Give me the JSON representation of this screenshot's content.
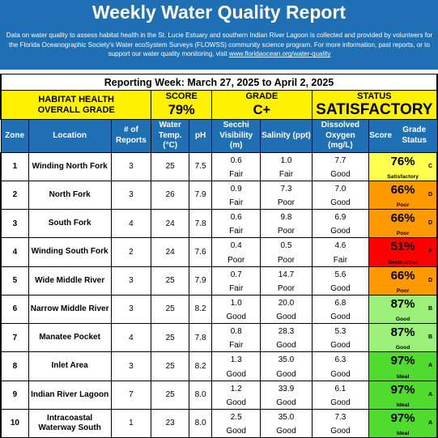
{
  "header": {
    "title": "Weekly Water Quality Report",
    "description": "Data on water quality to assess habitat health in the St. Lucie Estuary and southern Indian River Lagoon is collected and provided by volunteers for the Florida Oceanographic Society's Water ecoSystem Surveys (FLOWSS) community science program.  For more information, past reports, or to support our water quality monitoring, visit",
    "link_text": "www.floridaocean.org/water-quality"
  },
  "reporting_week": "Reporting Week: March 27, 2025 to April 2, 2025",
  "overall": {
    "label_line1": "HABITAT HEALTH",
    "label_line2": "OVERALL GRADE",
    "score_label": "SCORE",
    "score_value": "79%",
    "grade_label": "GRADE",
    "grade_value": "C+",
    "status_label": "STATUS",
    "status_value": "SATISFACTORY"
  },
  "columns": {
    "zone": "Zone",
    "location": "Location",
    "reports": "# of Reports",
    "temp": "Water Temp. (°C)",
    "ph": "pH",
    "secchi": "Secchi Visibility (m)",
    "salinity": "Salinity (ppt)",
    "oxygen": "Dissolved Oxygen (mg/L)",
    "score": "Score",
    "grade_status": "Grade Status"
  },
  "colors": {
    "header_blue": "#1f6fb4",
    "highlight_yellow": "#fff200",
    "satisfactory": "#ffff4d",
    "poor": "#ff9900",
    "destructive": "#ff0000",
    "good": "#9bf07a",
    "ideal": "#4fdc2e"
  },
  "rows": [
    {
      "zone": "1",
      "location": "Winding North Fork",
      "reports": "3",
      "temp": "25",
      "ph": "7.5",
      "secchi": "0.6",
      "secchi_q": "Fair",
      "salinity": "1.0",
      "salinity_q": "Fair",
      "oxygen": "7.7",
      "oxygen_q": "Good",
      "score": "76%",
      "grade": "C",
      "status": "Satisfactory",
      "color": "#ffff4d"
    },
    {
      "zone": "2",
      "location": "North Fork",
      "reports": "3",
      "temp": "26",
      "ph": "7.9",
      "secchi": "0.9",
      "secchi_q": "Fair",
      "salinity": "7.3",
      "salinity_q": "Poor",
      "oxygen": "7.0",
      "oxygen_q": "Good",
      "score": "66%",
      "grade": "D",
      "status": "Poor",
      "color": "#ff9900"
    },
    {
      "zone": "3",
      "location": "South Fork",
      "reports": "4",
      "temp": "24",
      "ph": "7.8",
      "secchi": "0.6",
      "secchi_q": "Fair",
      "salinity": "9.8",
      "salinity_q": "Poor",
      "oxygen": "6.9",
      "oxygen_q": "Good",
      "score": "66%",
      "grade": "D",
      "status": "Poor",
      "color": "#ff9900"
    },
    {
      "zone": "4",
      "location": "Winding South Fork",
      "reports": "2",
      "temp": "24",
      "ph": "7.6",
      "secchi": "0.4",
      "secchi_q": "Poor",
      "salinity": "0.5",
      "salinity_q": "Poor",
      "oxygen": "4.6",
      "oxygen_q": "Fair",
      "score": "51%",
      "grade": "F",
      "status": "Destructive",
      "color": "#ff0000"
    },
    {
      "zone": "5",
      "location": "Wide Middle River",
      "reports": "3",
      "temp": "25",
      "ph": "7.9",
      "secchi": "0.7",
      "secchi_q": "Fair",
      "salinity": "14.7",
      "salinity_q": "Poor",
      "oxygen": "5.6",
      "oxygen_q": "Good",
      "score": "66%",
      "grade": "D",
      "status": "Poor",
      "color": "#ff9900"
    },
    {
      "zone": "6",
      "location": "Narrow Middle River",
      "reports": "3",
      "temp": "25",
      "ph": "8.2",
      "secchi": "1.0",
      "secchi_q": "Good",
      "salinity": "20.0",
      "salinity_q": "Good",
      "oxygen": "6.8",
      "oxygen_q": "Good",
      "score": "87%",
      "grade": "B",
      "status": "Good",
      "color": "#9bf07a"
    },
    {
      "zone": "7",
      "location": "Manatee Pocket",
      "reports": "4",
      "temp": "25",
      "ph": "7.8",
      "secchi": "0.8",
      "secchi_q": "Fair",
      "salinity": "28.3",
      "salinity_q": "Good",
      "oxygen": "5.3",
      "oxygen_q": "Good",
      "score": "87%",
      "grade": "B",
      "status": "Good",
      "color": "#9bf07a"
    },
    {
      "zone": "8",
      "location": "Inlet Area",
      "reports": "3",
      "temp": "25",
      "ph": "8.2",
      "secchi": "1.3",
      "secchi_q": "Good",
      "salinity": "35.0",
      "salinity_q": "Good",
      "oxygen": "6.3",
      "oxygen_q": "Good",
      "score": "97%",
      "grade": "A",
      "status": "Ideal",
      "color": "#4fdc2e"
    },
    {
      "zone": "9",
      "location": "Indian River Lagoon",
      "reports": "7",
      "temp": "25",
      "ph": "8.0",
      "secchi": "1.2",
      "secchi_q": "Good",
      "salinity": "33.9",
      "salinity_q": "Good",
      "oxygen": "6.1",
      "oxygen_q": "Good",
      "score": "97%",
      "grade": "A",
      "status": "Ideal",
      "color": "#4fdc2e"
    },
    {
      "zone": "10",
      "location": "Intracoastal Waterway South",
      "reports": "1",
      "temp": "23",
      "ph": "8.0",
      "secchi": "2.5",
      "secchi_q": "Good",
      "salinity": "35.0",
      "salinity_q": "Good",
      "oxygen": "7.3",
      "oxygen_q": "Good",
      "score": "97%",
      "grade": "A",
      "status": "Ideal",
      "color": "#4fdc2e"
    }
  ]
}
